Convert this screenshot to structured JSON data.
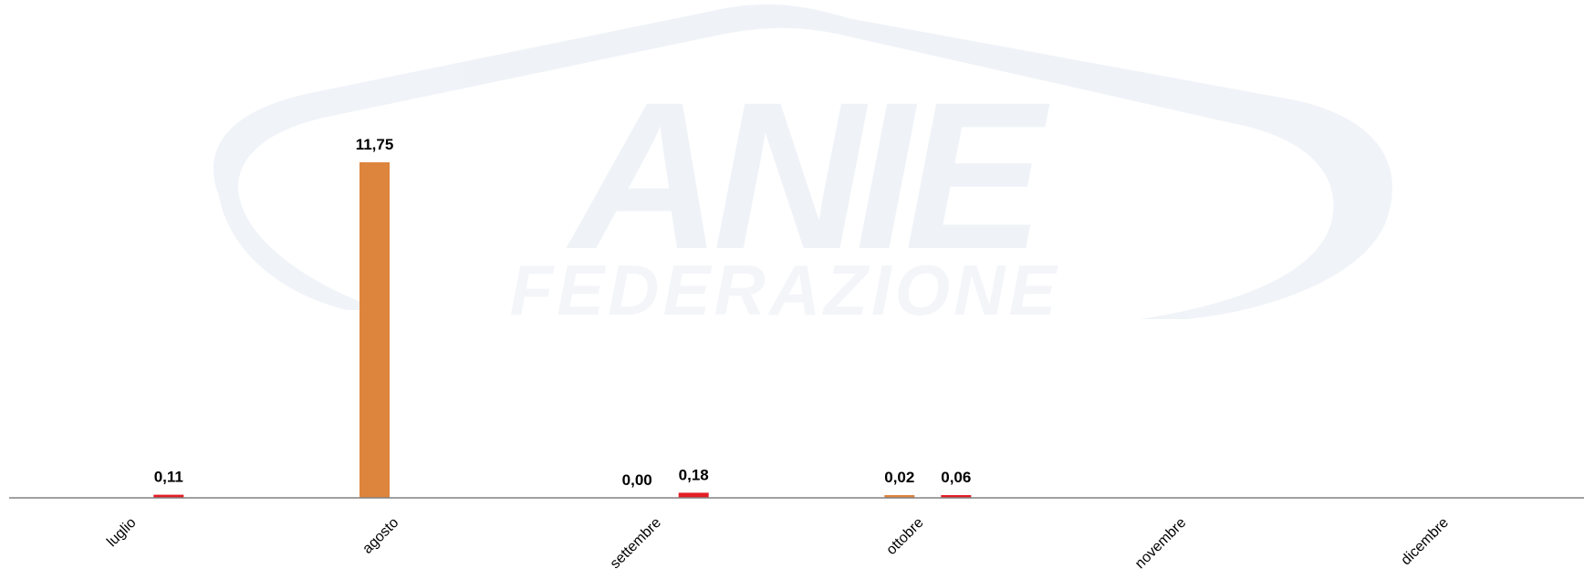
{
  "chart_data": {
    "type": "bar",
    "categories": [
      "luglio",
      "agosto",
      "settembre",
      "ottobre",
      "novembre",
      "dicembre"
    ],
    "series": [
      {
        "values": [
          null,
          11.75,
          0.0,
          0.02,
          null,
          null
        ],
        "color": "#DD843D"
      },
      {
        "values": [
          0.11,
          null,
          0.18,
          0.06,
          null,
          null
        ],
        "color": "#E31E24"
      }
    ],
    "data_labels": [
      [
        "",
        "11,75",
        "0,00",
        "0,02",
        "",
        ""
      ],
      [
        "0,11",
        "",
        "0,18",
        "0,06",
        "",
        ""
      ]
    ],
    "ylim": [
      0,
      11.75
    ],
    "grid": false,
    "legend": "none",
    "axis_color": "#808080"
  },
  "watermark": {
    "brand": "ANIE",
    "subtitle": "FEDERAZIONE",
    "color": "#EDF1F6"
  }
}
